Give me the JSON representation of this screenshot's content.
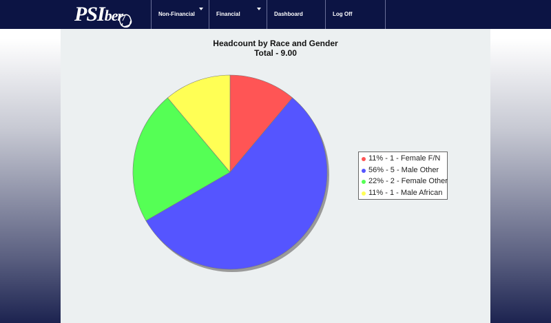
{
  "header": {
    "logo": {
      "main": "PSI",
      "suffix": "ber"
    },
    "nav": [
      {
        "label": "Non-Financial",
        "dropdown": true
      },
      {
        "label": "Financial",
        "dropdown": true
      },
      {
        "label": "Dashboard",
        "dropdown": false
      },
      {
        "label": "Log Off",
        "dropdown": false
      }
    ]
  },
  "chart_data": {
    "type": "pie",
    "title": "Headcount by Race and Gender",
    "subtitle": "Total - 9.00",
    "legend_position": "right",
    "slices": [
      {
        "label": "11% - 1 - Female F/N",
        "value": 1,
        "percent": 11,
        "color": "#ff5555"
      },
      {
        "label": "56% - 5 - Male Other",
        "value": 5,
        "percent": 56,
        "color": "#5555ff"
      },
      {
        "label": "22% - 2 - Female Other",
        "value": 2,
        "percent": 22,
        "color": "#55ff55"
      },
      {
        "label": "11% - 1 - Male African",
        "value": 1,
        "percent": 11,
        "color": "#ffff55"
      }
    ]
  }
}
